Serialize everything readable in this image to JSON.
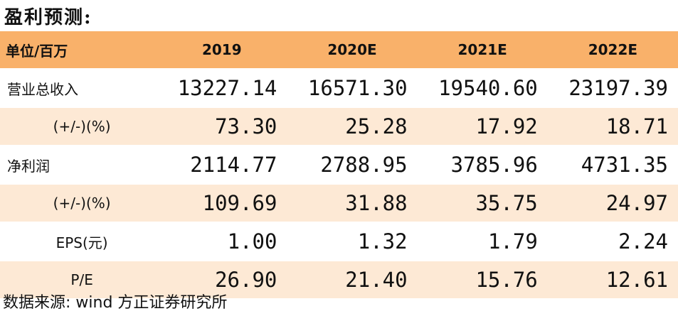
{
  "title": "盈利预测:",
  "table": {
    "header": [
      "单位/百万",
      "2019",
      "2020E",
      "2021E",
      "2022E"
    ],
    "rows": [
      {
        "label": "营业总收入",
        "indent": false,
        "values": [
          "13227.14",
          "16571.30",
          "19540.60",
          "23197.39"
        ]
      },
      {
        "label": "(+/-)(%)",
        "indent": true,
        "values": [
          "73.30",
          "25.28",
          "17.92",
          "18.71"
        ]
      },
      {
        "label": "净利润",
        "indent": false,
        "values": [
          "2114.77",
          "2788.95",
          "3785.96",
          "4731.35"
        ]
      },
      {
        "label": "(+/-)(%)",
        "indent": true,
        "values": [
          "109.69",
          "31.88",
          "35.75",
          "24.97"
        ]
      },
      {
        "label": "EPS(元)",
        "indent": true,
        "values": [
          "1.00",
          "1.32",
          "1.79",
          "2.24"
        ]
      },
      {
        "label": "P/E",
        "indent": true,
        "values": [
          "26.90",
          "21.40",
          "15.76",
          "12.61"
        ]
      }
    ]
  },
  "source": "数据来源: wind 方正证券研究所",
  "colors": {
    "header_bg": "#f9b16a",
    "stripe_bg": "#fde9d5"
  }
}
